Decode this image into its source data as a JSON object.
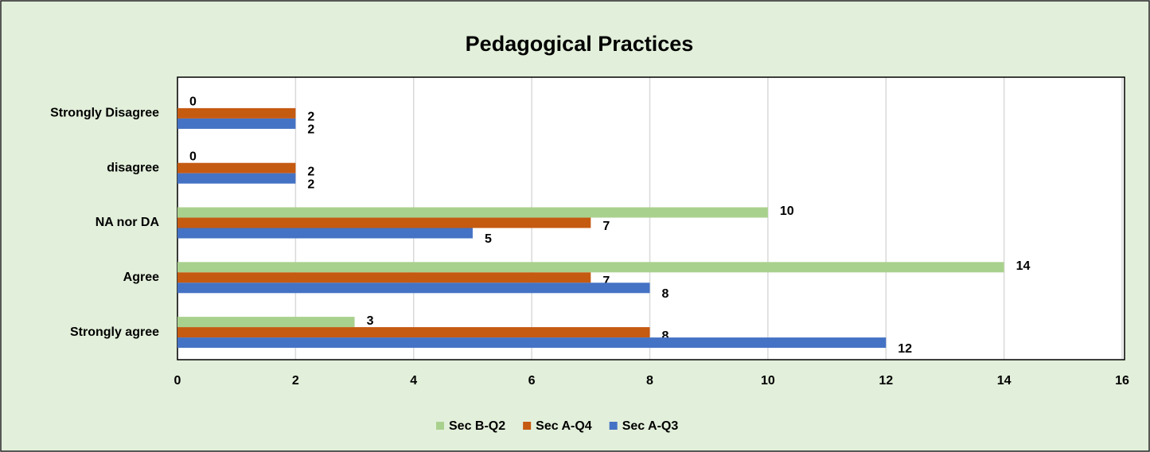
{
  "chart_data": {
    "type": "hbar",
    "title": "Pedagogical Practices",
    "categories": [
      "Strongly Disagree",
      "disagree",
      "NA nor DA",
      "Agree",
      "Strongly agree"
    ],
    "series": [
      {
        "name": "Sec B-Q2",
        "color": "#a9d18e",
        "values": [
          0,
          0,
          10,
          14,
          3
        ]
      },
      {
        "name": "Sec A-Q4",
        "color": "#c55a11",
        "values": [
          2,
          2,
          7,
          7,
          8
        ]
      },
      {
        "name": "Sec A-Q3",
        "color": "#4472c4",
        "values": [
          2,
          2,
          5,
          8,
          12
        ]
      }
    ],
    "xlim": [
      0,
      16
    ],
    "xticks": [
      0,
      2,
      4,
      6,
      8,
      10,
      12,
      14,
      16
    ],
    "grid": true,
    "legend": "bottom"
  }
}
